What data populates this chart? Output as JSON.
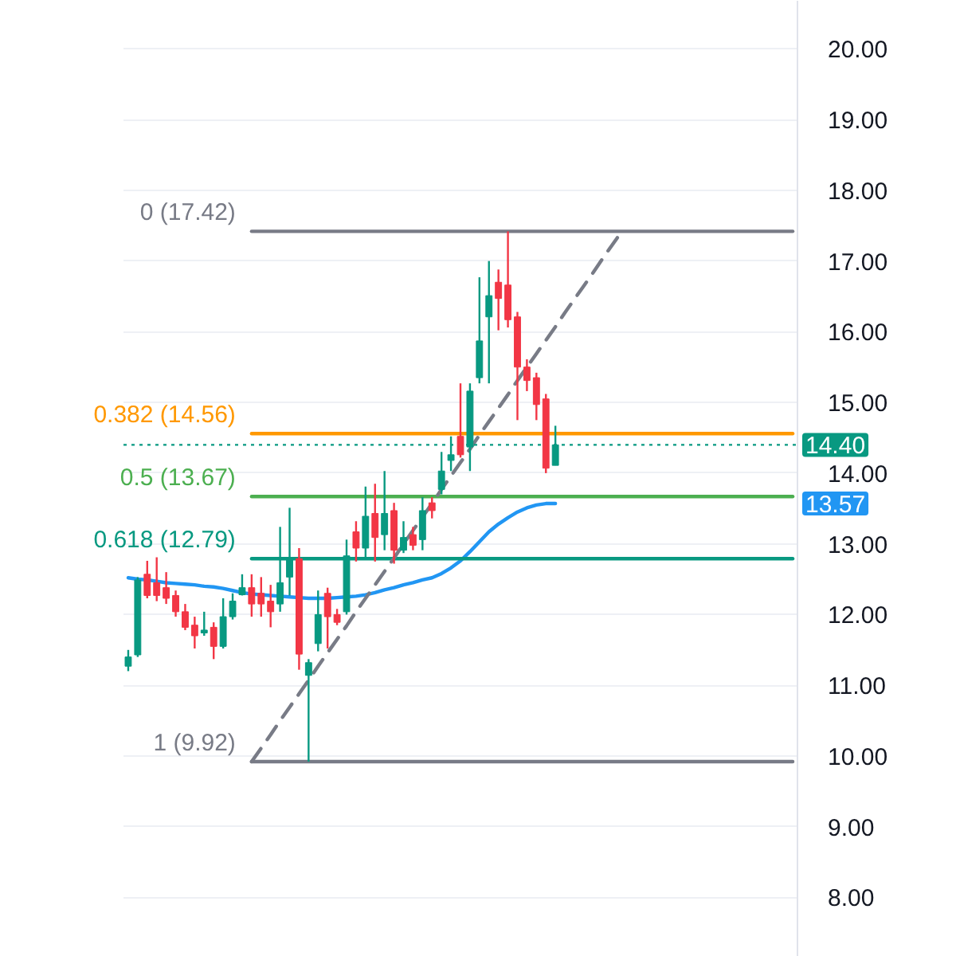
{
  "chart_data": {
    "type": "candlestick",
    "categories": [
      null,
      null,
      null,
      null,
      null,
      null,
      null,
      null,
      null,
      null,
      null,
      null,
      null,
      null,
      null,
      null,
      null,
      null,
      null,
      null,
      null,
      null,
      null,
      null,
      null,
      null,
      null,
      null,
      null,
      null,
      null,
      null,
      null,
      null,
      null,
      null,
      null,
      null,
      null,
      null,
      null,
      null,
      null,
      null,
      null,
      null,
      null,
      null,
      null,
      null,
      null,
      null,
      null,
      null,
      null,
      null,
      null,
      null,
      null,
      null,
      null,
      null,
      null,
      null,
      null,
      null,
      null,
      null,
      null,
      null,
      null
    ],
    "ohlc": [
      [
        11.27,
        11.5,
        11.2,
        11.4
      ],
      [
        11.43,
        12.53,
        11.4,
        12.49
      ],
      [
        12.57,
        12.76,
        12.23,
        12.27
      ],
      [
        12.45,
        12.81,
        12.19,
        12.27
      ],
      [
        12.38,
        12.6,
        12.15,
        12.23
      ],
      [
        12.27,
        12.34,
        11.97,
        12.04
      ],
      [
        12.04,
        12.15,
        11.78,
        11.82
      ],
      [
        11.85,
        11.97,
        11.52,
        11.7
      ],
      [
        11.74,
        12.04,
        11.7,
        11.78
      ],
      [
        11.82,
        11.89,
        11.37,
        11.55
      ],
      [
        11.55,
        12.23,
        11.52,
        11.97
      ],
      [
        11.97,
        12.3,
        11.93,
        12.19
      ],
      [
        12.28,
        12.57,
        12.27,
        12.38
      ],
      [
        12.38,
        12.57,
        11.97,
        12.15
      ],
      [
        12.3,
        12.53,
        11.97,
        12.15
      ],
      [
        12.19,
        12.42,
        11.82,
        12.04
      ],
      [
        12.15,
        13.24,
        12.04,
        12.45
      ],
      [
        12.53,
        13.51,
        12.27,
        12.79
      ],
      [
        12.79,
        12.94,
        11.22,
        11.44
      ],
      [
        11.14,
        11.37,
        9.92,
        11.32
      ],
      [
        11.59,
        12.34,
        11.48,
        12.0
      ],
      [
        12.3,
        12.38,
        11.52,
        11.97
      ],
      [
        12.0,
        12.08,
        11.85,
        11.89
      ],
      [
        12.04,
        13.06,
        12.0,
        12.83
      ],
      [
        13.17,
        13.32,
        12.75,
        12.94
      ],
      [
        12.94,
        13.81,
        12.79,
        13.39
      ],
      [
        13.43,
        13.85,
        12.75,
        13.09
      ],
      [
        13.13,
        14.03,
        12.91,
        13.43
      ],
      [
        13.47,
        13.58,
        12.72,
        12.91
      ],
      [
        12.91,
        13.32,
        12.87,
        13.09
      ],
      [
        13.13,
        13.24,
        12.91,
        12.98
      ],
      [
        13.06,
        13.66,
        12.91,
        13.47
      ],
      [
        13.58,
        13.66,
        13.36,
        13.47
      ],
      [
        13.77,
        14.3,
        13.7,
        14.03
      ],
      [
        14.18,
        14.52,
        14.03,
        14.26
      ],
      [
        14.52,
        15.27,
        14.22,
        14.26
      ],
      [
        14.37,
        15.27,
        14.03,
        15.16
      ],
      [
        15.35,
        16.77,
        15.27,
        15.87
      ],
      [
        16.21,
        17.0,
        15.27,
        16.51
      ],
      [
        16.7,
        16.88,
        16.02,
        16.47
      ],
      [
        16.66,
        17.42,
        16.06,
        16.17
      ],
      [
        16.21,
        16.28,
        14.75,
        15.5
      ],
      [
        15.5,
        15.61,
        15.16,
        15.31
      ],
      [
        15.35,
        15.42,
        14.75,
        14.97
      ],
      [
        15.05,
        15.12,
        14.0,
        14.07
      ],
      [
        14.11,
        14.67,
        14.11,
        14.4
      ],
      null,
      null,
      null,
      null,
      null,
      null,
      null,
      null,
      null,
      null,
      null,
      null,
      null,
      null,
      null,
      null,
      null,
      null,
      null,
      null,
      null,
      null,
      null,
      null,
      null
    ],
    "colors": [
      "#089981",
      "#089981",
      "#f23645",
      "#f23645",
      "#f23645",
      "#f23645",
      "#f23645",
      "#f23645",
      "#089981",
      "#f23645",
      "#089981",
      "#089981",
      "#089981",
      "#f23645",
      "#f23645",
      "#f23645",
      "#089981",
      "#089981",
      "#f23645",
      "#089981",
      "#089981",
      "#f23645",
      "#f23645",
      "#089981",
      "#f23645",
      "#089981",
      "#f23645",
      "#089981",
      "#f23645",
      "#089981",
      "#f23645",
      "#089981",
      "#f23645",
      "#089981",
      "#089981",
      "#f23645",
      "#089981",
      "#089981",
      "#089981",
      "#f23645",
      "#f23645",
      "#f23645",
      "#f23645",
      "#f23645",
      "#f23645",
      "#089981",
      null,
      null,
      null,
      null,
      null,
      null,
      null,
      null,
      null,
      null,
      null,
      null,
      null,
      null,
      null,
      null,
      null,
      null,
      null,
      null,
      null,
      null,
      null,
      null,
      null
    ],
    "series": [
      {
        "type": "line",
        "color": "#2196f3",
        "values": [
          12.52,
          12.5,
          12.49,
          12.47,
          12.45,
          12.44,
          12.43,
          12.42,
          12.4,
          12.39,
          12.37,
          12.34,
          12.31,
          12.29,
          12.28,
          12.27,
          12.26,
          12.25,
          12.24,
          12.23,
          12.23,
          12.23,
          12.24,
          12.25,
          12.26,
          12.28,
          12.31,
          12.35,
          12.38,
          12.42,
          12.45,
          12.49,
          12.52,
          12.58,
          12.66,
          12.76,
          12.89,
          13.03,
          13.17,
          13.28,
          13.37,
          13.45,
          13.51,
          13.55,
          13.57,
          13.57,
          null,
          null,
          null,
          null,
          null,
          null,
          null,
          null,
          null,
          null,
          null,
          null,
          null,
          null,
          null,
          null,
          null,
          null,
          null,
          null,
          null,
          null,
          null,
          null,
          null
        ]
      },
      {
        "type": "line",
        "name": "0 (17.42)",
        "color": "#787b86",
        "values": [
          null,
          null,
          null,
          null,
          null,
          null,
          null,
          null,
          null,
          null,
          null,
          null,
          null,
          17.42,
          17.42,
          17.42,
          17.42,
          17.42,
          17.42,
          17.42,
          17.42,
          17.42,
          17.42,
          17.42,
          17.42,
          17.42,
          17.42,
          17.42,
          17.42,
          17.42,
          17.42,
          17.42,
          17.42,
          17.42,
          17.42,
          17.42,
          17.42,
          17.42,
          17.42,
          17.42,
          17.42,
          17.42,
          17.42,
          17.42,
          17.42,
          17.42,
          17.42,
          17.42,
          17.42,
          17.42,
          17.42,
          17.42,
          17.42,
          17.42,
          17.42,
          17.42,
          17.42,
          17.42,
          17.42,
          17.42,
          17.42,
          17.42,
          17.42,
          17.42,
          17.42,
          17.42,
          17.42,
          17.42,
          17.42,
          17.42,
          17.42
        ]
      },
      {
        "type": "line",
        "name": "0.382 (14.56)",
        "color": "#ff9800",
        "values": [
          null,
          null,
          null,
          null,
          null,
          null,
          null,
          null,
          null,
          null,
          null,
          null,
          null,
          14.56,
          14.56,
          14.56,
          14.56,
          14.56,
          14.56,
          14.56,
          14.56,
          14.56,
          14.56,
          14.56,
          14.56,
          14.56,
          14.56,
          14.56,
          14.56,
          14.56,
          14.56,
          14.56,
          14.56,
          14.56,
          14.56,
          14.56,
          14.56,
          14.56,
          14.56,
          14.56,
          14.56,
          14.56,
          14.56,
          14.56,
          14.56,
          14.56,
          14.56,
          14.56,
          14.56,
          14.56,
          14.56,
          14.56,
          14.56,
          14.56,
          14.56,
          14.56,
          14.56,
          14.56,
          14.56,
          14.56,
          14.56,
          14.56,
          14.56,
          14.56,
          14.56,
          14.56,
          14.56,
          14.56,
          14.56,
          14.56,
          14.56
        ]
      },
      {
        "type": "line",
        "name": "0.5 (13.67)",
        "color": "#4caf50",
        "values": [
          null,
          null,
          null,
          null,
          null,
          null,
          null,
          null,
          null,
          null,
          null,
          null,
          null,
          13.67,
          13.67,
          13.67,
          13.67,
          13.67,
          13.67,
          13.67,
          13.67,
          13.67,
          13.67,
          13.67,
          13.67,
          13.67,
          13.67,
          13.67,
          13.67,
          13.67,
          13.67,
          13.67,
          13.67,
          13.67,
          13.67,
          13.67,
          13.67,
          13.67,
          13.67,
          13.67,
          13.67,
          13.67,
          13.67,
          13.67,
          13.67,
          13.67,
          13.67,
          13.67,
          13.67,
          13.67,
          13.67,
          13.67,
          13.67,
          13.67,
          13.67,
          13.67,
          13.67,
          13.67,
          13.67,
          13.67,
          13.67,
          13.67,
          13.67,
          13.67,
          13.67,
          13.67,
          13.67,
          13.67,
          13.67,
          13.67,
          13.67
        ]
      },
      {
        "type": "line",
        "name": "0.618 (12.79)",
        "color": "#089981",
        "values": [
          null,
          null,
          null,
          null,
          null,
          null,
          null,
          null,
          null,
          null,
          null,
          null,
          null,
          12.79,
          12.79,
          12.79,
          12.79,
          12.79,
          12.79,
          12.79,
          12.79,
          12.79,
          12.79,
          12.79,
          12.79,
          12.79,
          12.79,
          12.79,
          12.79,
          12.79,
          12.79,
          12.79,
          12.79,
          12.79,
          12.79,
          12.79,
          12.79,
          12.79,
          12.79,
          12.79,
          12.79,
          12.79,
          12.79,
          12.79,
          12.79,
          12.79,
          12.79,
          12.79,
          12.79,
          12.79,
          12.79,
          12.79,
          12.79,
          12.79,
          12.79,
          12.79,
          12.79,
          12.79,
          12.79,
          12.79,
          12.79,
          12.79,
          12.79,
          12.79,
          12.79,
          12.79,
          12.79,
          12.79,
          12.79,
          12.79,
          12.79
        ]
      },
      {
        "type": "line",
        "name": "1 (9.92)",
        "color": "#787b86",
        "values": [
          null,
          null,
          null,
          null,
          null,
          null,
          null,
          null,
          null,
          null,
          null,
          null,
          null,
          9.92,
          9.92,
          9.92,
          9.92,
          9.92,
          9.92,
          9.92,
          9.92,
          9.92,
          9.92,
          9.92,
          9.92,
          9.92,
          9.92,
          9.92,
          9.92,
          9.92,
          9.92,
          9.92,
          9.92,
          9.92,
          9.92,
          9.92,
          9.92,
          9.92,
          9.92,
          9.92,
          9.92,
          9.92,
          9.92,
          9.92,
          9.92,
          9.92,
          9.92,
          9.92,
          9.92,
          9.92,
          9.92,
          9.92,
          9.92,
          9.92,
          9.92,
          9.92,
          9.92,
          9.92,
          9.92,
          9.92,
          9.92,
          9.92,
          9.92,
          9.92,
          9.92,
          9.92,
          9.92,
          9.92,
          9.92,
          9.92,
          9.92
        ]
      },
      {
        "type": "line",
        "color": "#787b86",
        "line_style": "dashed",
        "values": [
          null,
          null,
          null,
          null,
          null,
          null,
          null,
          null,
          null,
          null,
          null,
          null,
          null,
          9.92,
          10.11,
          10.3,
          10.5,
          10.69,
          10.88,
          11.07,
          11.27,
          11.46,
          11.65,
          11.84,
          12.04,
          12.23,
          12.42,
          12.61,
          12.8,
          13.0,
          13.19,
          13.38,
          13.57,
          13.77,
          13.96,
          14.15,
          14.34,
          14.54,
          14.73,
          14.92,
          15.11,
          15.31,
          15.5,
          15.69,
          15.88,
          16.07,
          16.27,
          16.46,
          16.65,
          16.84,
          17.04,
          17.23,
          17.42,
          null,
          null,
          null,
          null,
          null,
          null,
          null,
          null,
          null,
          null,
          null,
          null,
          null,
          null,
          null,
          null,
          null,
          null
        ]
      }
    ],
    "ylim": [
      7.16,
      20.68
    ],
    "yticks": [
      {
        "value": 8,
        "label": "8.00"
      },
      {
        "value": 9,
        "label": "9.00"
      },
      {
        "value": 10,
        "label": "10.00"
      },
      {
        "value": 11,
        "label": "11.00"
      },
      {
        "value": 12,
        "label": "12.00"
      },
      {
        "value": 13,
        "label": "13.00"
      },
      {
        "value": 14,
        "label": "14.00"
      },
      {
        "value": 15,
        "label": "15.00"
      },
      {
        "value": 16,
        "label": "16.00"
      },
      {
        "value": 17,
        "label": "17.00"
      },
      {
        "value": 18,
        "label": "18.00"
      },
      {
        "value": 19,
        "label": "19.00"
      },
      {
        "value": 20,
        "label": "20.00"
      }
    ],
    "ref_lines": [
      {
        "axis": "y",
        "value": 14.4,
        "label": "14.40",
        "color": "#089981",
        "line_style": "dotted"
      }
    ],
    "annotations": [
      {
        "text": "13.57",
        "y": 13.57
      }
    ],
    "grid": "y",
    "tick_labels": "y"
  }
}
